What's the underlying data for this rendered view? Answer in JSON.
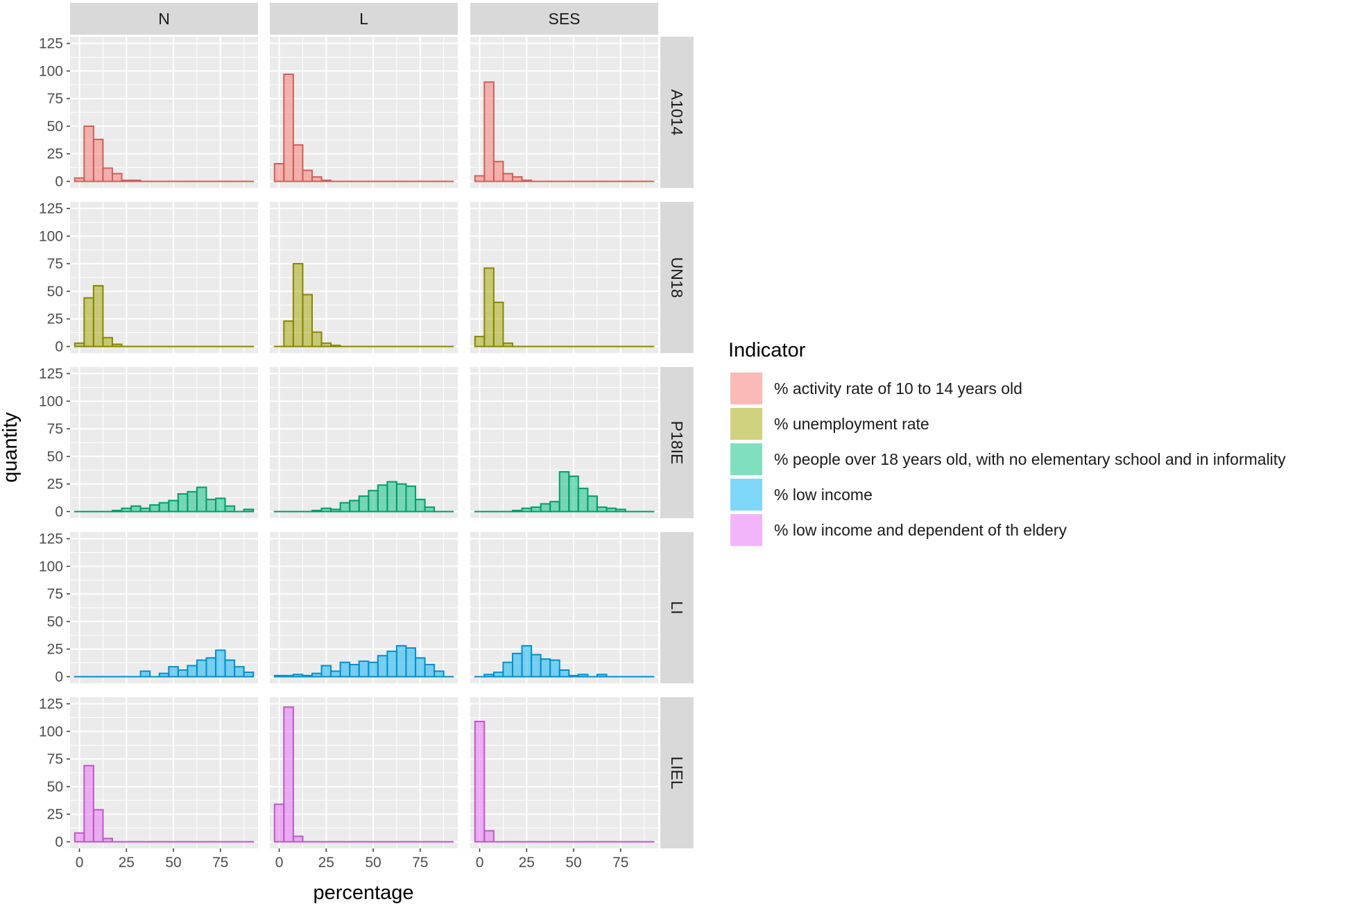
{
  "chart_data": {
    "type": "histogram-facet-grid",
    "xlabel": "percentage",
    "ylabel": "quantity",
    "x_ticks": [
      0,
      25,
      50,
      75
    ],
    "y_ticks": [
      0,
      25,
      50,
      75,
      100,
      125
    ],
    "xlim": [
      -5,
      95
    ],
    "ylim": [
      -6,
      131
    ],
    "bin_width": 5,
    "bin_starts": [
      -2.5,
      2.5,
      7.5,
      12.5,
      17.5,
      22.5,
      27.5,
      32.5,
      37.5,
      42.5,
      47.5,
      52.5,
      57.5,
      62.5,
      67.5,
      72.5,
      77.5,
      82.5,
      87.5
    ],
    "columns": [
      "N",
      "L",
      "SES"
    ],
    "rows": [
      {
        "key": "A1014",
        "indicator": "% activity rate of 10 to 14 years old",
        "color": "#F8766D",
        "values": {
          "N": [
            3,
            50,
            38,
            12,
            7,
            1,
            1,
            0,
            0,
            0,
            0,
            0,
            0,
            0,
            0,
            0,
            0,
            0,
            0
          ],
          "L": [
            16,
            97,
            33,
            10,
            4,
            1,
            0,
            0,
            0,
            0,
            0,
            0,
            0,
            0,
            0,
            0,
            0,
            0,
            0
          ],
          "SES": [
            5,
            90,
            18,
            7,
            4,
            1,
            0,
            0,
            0,
            0,
            0,
            0,
            0,
            0,
            0,
            0,
            0,
            0,
            0
          ]
        }
      },
      {
        "key": "UN18",
        "indicator": "% unemployment rate",
        "color": "#A3A500",
        "values": {
          "N": [
            3,
            44,
            55,
            8,
            2,
            0,
            0,
            0,
            0,
            0,
            0,
            0,
            0,
            0,
            0,
            0,
            0,
            0,
            0
          ],
          "L": [
            0,
            23,
            75,
            47,
            13,
            3,
            1,
            0,
            0,
            0,
            0,
            0,
            0,
            0,
            0,
            0,
            0,
            0,
            0
          ],
          "SES": [
            9,
            71,
            40,
            3,
            0,
            0,
            0,
            0,
            0,
            0,
            0,
            0,
            0,
            0,
            0,
            0,
            0,
            0,
            0
          ]
        }
      },
      {
        "key": "P18IE",
        "indicator": "% people over 18 years old, with no elementary school and in informality",
        "color": "#00BF7D",
        "values": {
          "N": [
            0,
            0,
            0,
            0,
            1,
            3,
            5,
            3,
            6,
            8,
            10,
            16,
            18,
            22,
            11,
            12,
            5,
            0,
            2
          ],
          "L": [
            0,
            0,
            0,
            0,
            1,
            3,
            2,
            8,
            10,
            14,
            19,
            24,
            27,
            25,
            23,
            11,
            4,
            0,
            0
          ],
          "SES": [
            0,
            0,
            0,
            0,
            1,
            3,
            4,
            7,
            9,
            36,
            32,
            21,
            14,
            4,
            3,
            2,
            0,
            0,
            0
          ]
        }
      },
      {
        "key": "LI",
        "indicator": "% low income",
        "color": "#00B0F6",
        "values": {
          "N": [
            0,
            0,
            0,
            0,
            0,
            0,
            0,
            5,
            0,
            3,
            9,
            6,
            10,
            15,
            17,
            24,
            15,
            9,
            4
          ],
          "L": [
            1,
            1,
            2,
            1,
            3,
            10,
            5,
            13,
            11,
            14,
            13,
            19,
            23,
            28,
            26,
            17,
            11,
            5,
            0
          ],
          "SES": [
            0,
            2,
            4,
            13,
            21,
            28,
            20,
            16,
            15,
            6,
            1,
            2,
            0,
            2,
            0,
            0,
            0,
            0,
            0
          ]
        }
      },
      {
        "key": "LIEL",
        "indicator": "% low income and dependent of th eldery",
        "color": "#E76BF3",
        "values": {
          "N": [
            8,
            69,
            29,
            3,
            0,
            0,
            0,
            0,
            0,
            0,
            0,
            0,
            0,
            0,
            0,
            0,
            0,
            0,
            0
          ],
          "L": [
            34,
            122,
            5,
            0,
            0,
            0,
            0,
            0,
            0,
            0,
            0,
            0,
            0,
            0,
            0,
            0,
            0,
            0,
            0
          ],
          "SES": [
            109,
            10,
            0,
            0,
            0,
            0,
            0,
            0,
            0,
            0,
            0,
            0,
            0,
            0,
            0,
            0,
            0,
            0,
            0
          ]
        }
      }
    ],
    "legend": {
      "title": "Indicator",
      "position": "right",
      "entries": [
        {
          "label": "% activity rate of 10 to 14 years old",
          "color": "#F8766D"
        },
        {
          "label": "% unemployment rate",
          "color": "#A3A500"
        },
        {
          "label": "% people over 18 years old, with no elementary school and in informality",
          "color": "#00BF7D"
        },
        {
          "label": "% low income",
          "color": "#00B0F6"
        },
        {
          "label": "% low income and dependent of th eldery",
          "color": "#E76BF3"
        }
      ]
    }
  },
  "colors": {
    "panel_background": "#EBEBEB",
    "strip_background": "#D9D9D9",
    "grid_line": "#FFFFFF"
  }
}
